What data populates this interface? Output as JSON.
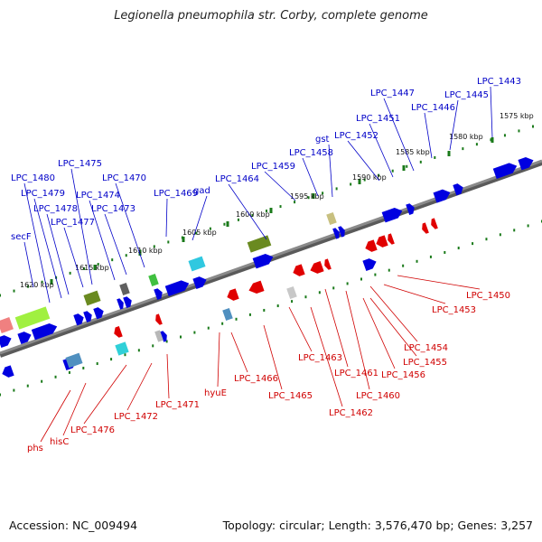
{
  "title": "Legionella pneumophila str. Corby, complete genome",
  "footer": {
    "accession": "Accession: NC_009494",
    "summary": "Topology: circular; Length: 3,576,470 bp; Genes: 3,257"
  },
  "colors": {
    "forward_gene": "#0000e0",
    "reverse_gene": "#e00000",
    "top_label": "#0000c8",
    "bottom_label": "#d00000",
    "tick": "#1a7a1a",
    "backbone": "#8a8a8a"
  },
  "kbp_ticks": [
    "1575 kbp",
    "1580 kbp",
    "1585 kbp",
    "1590 kbp",
    "1595 kbp",
    "1600 kbp",
    "1605 kbp",
    "1610 kbp",
    "1615 kbp",
    "1620 kbp"
  ],
  "top_labels": [
    "LPC_1443",
    "LPC_1445",
    "LPC_1446",
    "LPC_1447",
    "LPC_1451",
    "LPC_1452",
    "gst",
    "LPC_1458",
    "LPC_1459",
    "LPC_1464",
    "gad",
    "LPC_1469",
    "LPC_1470",
    "LPC_1473",
    "LPC_1474",
    "LPC_1475",
    "LPC_1477",
    "LPC_1478",
    "LPC_1479",
    "LPC_1480",
    "secF"
  ],
  "bottom_labels": [
    "LPC_1450",
    "LPC_1453",
    "LPC_1454",
    "LPC_1455",
    "LPC_1456",
    "LPC_1460",
    "LPC_1461",
    "LPC_1462",
    "LPC_1463",
    "LPC_1465",
    "LPC_1466",
    "hyuE",
    "LPC_1471",
    "LPC_1472",
    "LPC_1476",
    "hisC",
    "phs"
  ]
}
